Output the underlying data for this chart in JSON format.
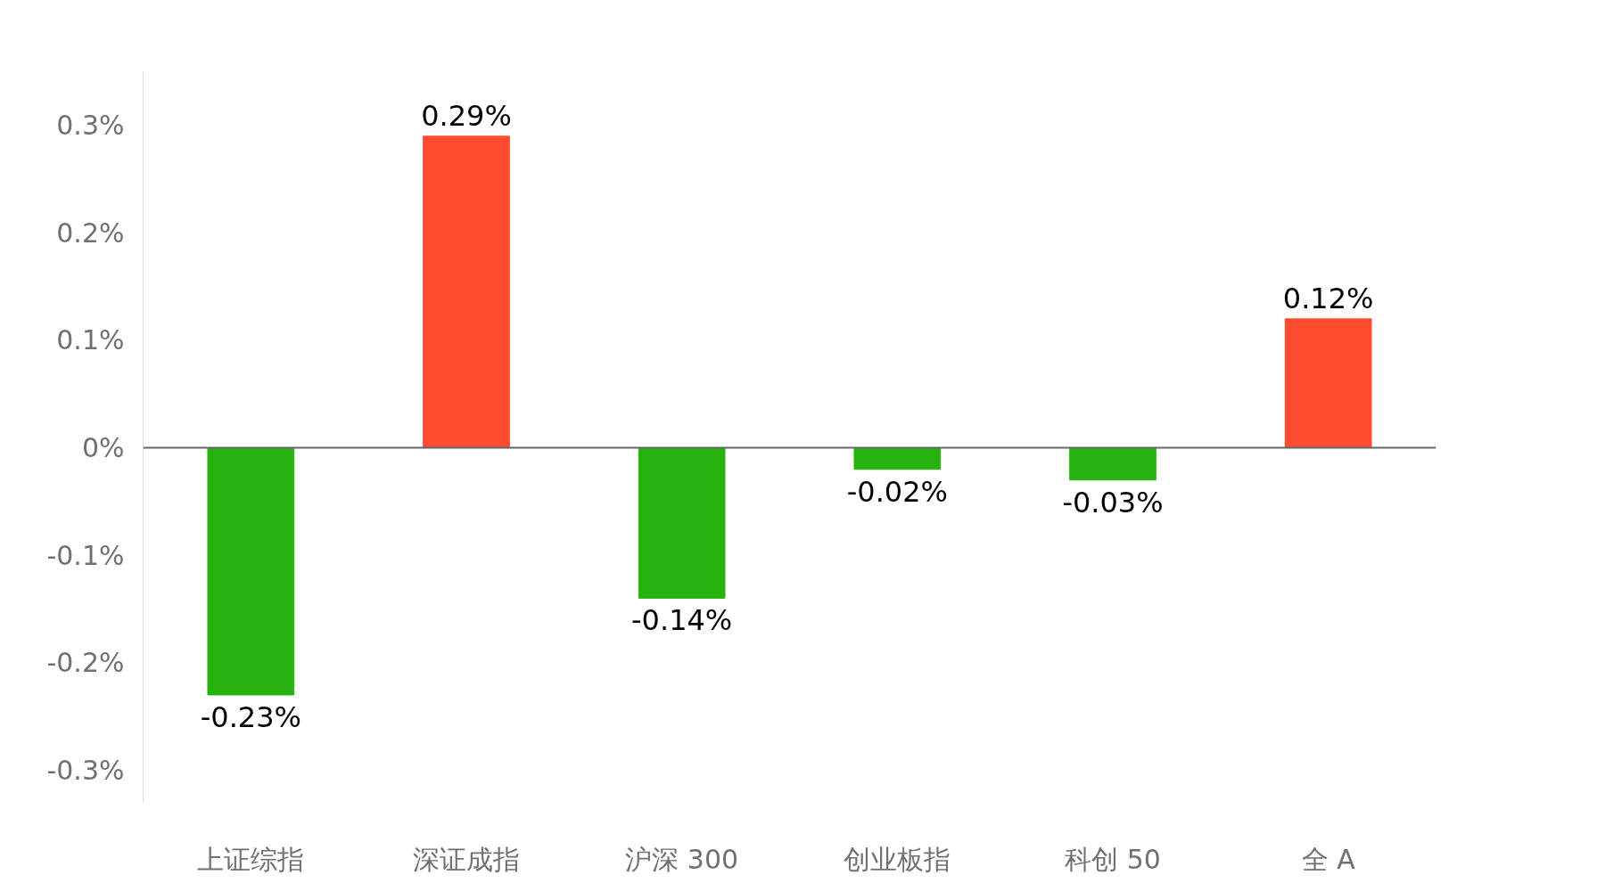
{
  "chart_data": {
    "type": "bar",
    "categories": [
      "上证综指",
      "深证成指",
      "沪深 300",
      "创业板指",
      "科创 50",
      "全 A"
    ],
    "values": [
      -0.23,
      0.29,
      -0.14,
      -0.02,
      -0.03,
      0.12
    ],
    "colors": [
      "#27b30f",
      "#ff4b2f",
      "#27b30f",
      "#27b30f",
      "#27b30f",
      "#ff4b2f"
    ],
    "value_labels": [
      "-0.23%",
      "0.29%",
      "-0.14%",
      "-0.02%",
      "-0.03%",
      "0.12%"
    ],
    "ylim": [
      -0.33,
      0.35
    ],
    "ref_lines": [
      {
        "axis": "y",
        "value": 0,
        "color": "#666666"
      }
    ],
    "yticks": [
      {
        "value": -0.3,
        "label": "-0.3%"
      },
      {
        "value": -0.2,
        "label": "-0.2%"
      },
      {
        "value": -0.1,
        "label": "-0.1%"
      },
      {
        "value": 0,
        "label": "0%"
      },
      {
        "value": 0.1,
        "label": "0.1%"
      },
      {
        "value": 0.2,
        "label": "0.2%"
      },
      {
        "value": 0.3,
        "label": "0.3%"
      }
    ],
    "grid": false
  }
}
